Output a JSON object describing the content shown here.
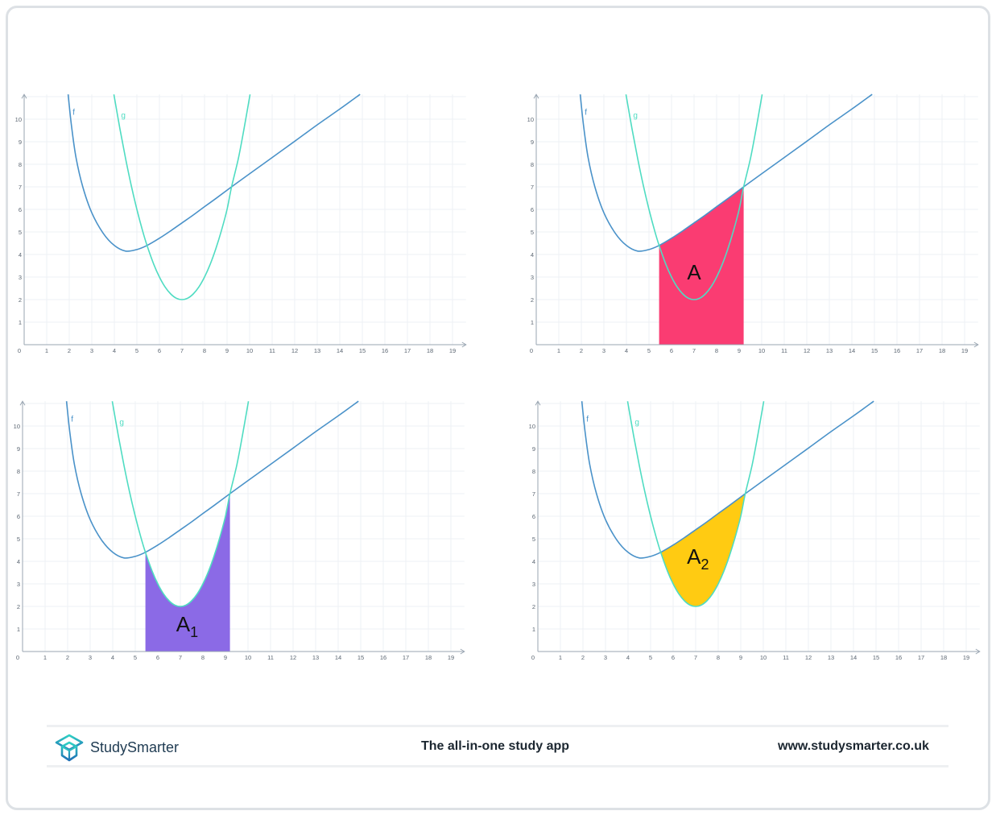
{
  "colors": {
    "f": "#4a92c9",
    "g": "#4fdcc2",
    "fill_A": "#fa3c72",
    "fill_A1": "#8b6ae6",
    "fill_A2": "#ffcb12",
    "axis": "#9aa6b2",
    "grid": "#eef1f4"
  },
  "chart_data": [
    {
      "type": "line",
      "x_ticks": [
        "0",
        "1",
        "2",
        "3",
        "4",
        "5",
        "6",
        "7",
        "8",
        "9",
        "10",
        "11",
        "12",
        "13",
        "14",
        "15",
        "16",
        "17",
        "18",
        "19"
      ],
      "y_ticks": [
        "1",
        "2",
        "3",
        "4",
        "5",
        "6",
        "7",
        "8",
        "9",
        "10"
      ],
      "xlim": [
        0,
        19.6
      ],
      "ylim": [
        0,
        11.1
      ],
      "grid": true,
      "series": [
        {
          "name": "f",
          "points": [
            [
              1.95,
              11.1
            ],
            [
              2.1,
              9.7
            ],
            [
              2.3,
              8.3
            ],
            [
              2.6,
              7
            ],
            [
              3,
              5.85
            ],
            [
              3.5,
              4.95
            ],
            [
              4,
              4.4
            ],
            [
              4.5,
              4.15
            ],
            [
              5,
              4.22
            ],
            [
              5.45,
              4.4
            ],
            [
              6,
              4.72
            ],
            [
              6.5,
              5.05
            ],
            [
              7,
              5.4
            ],
            [
              7.5,
              5.75
            ],
            [
              8,
              6.12
            ],
            [
              8.5,
              6.48
            ],
            [
              9.2,
              7
            ],
            [
              10,
              7.58
            ],
            [
              11,
              8.3
            ],
            [
              12,
              9.02
            ],
            [
              13,
              9.75
            ],
            [
              14,
              10.45
            ],
            [
              14.9,
              11.1
            ]
          ]
        },
        {
          "name": "g",
          "points": [
            [
              3.98,
              11.1
            ],
            [
              4.25,
              9.56
            ],
            [
              4.5,
              8.25
            ],
            [
              4.75,
              7.06
            ],
            [
              5,
              6
            ],
            [
              5.25,
              5.06
            ],
            [
              5.45,
              4.4
            ],
            [
              5.75,
              3.56
            ],
            [
              6,
              3
            ],
            [
              6.25,
              2.56
            ],
            [
              6.5,
              2.25
            ],
            [
              6.75,
              2.06
            ],
            [
              7,
              2
            ],
            [
              7.25,
              2.06
            ],
            [
              7.5,
              2.25
            ],
            [
              7.75,
              2.56
            ],
            [
              8,
              3
            ],
            [
              8.25,
              3.56
            ],
            [
              8.5,
              4.25
            ],
            [
              8.75,
              5.06
            ],
            [
              9,
              6
            ],
            [
              9.2,
              7
            ],
            [
              9.5,
              8.25
            ],
            [
              9.75,
              9.56
            ],
            [
              10.02,
              11.1
            ]
          ]
        }
      ],
      "shaded": null
    },
    {
      "type": "area",
      "x_ticks": [
        "0",
        "1",
        "2",
        "3",
        "4",
        "5",
        "6",
        "7",
        "8",
        "9",
        "10",
        "11",
        "12",
        "13",
        "14",
        "15",
        "16",
        "17",
        "18",
        "19"
      ],
      "y_ticks": [
        "1",
        "2",
        "3",
        "4",
        "5",
        "6",
        "7",
        "8",
        "9",
        "10"
      ],
      "xlim": [
        0,
        19.6
      ],
      "ylim": [
        0,
        11.1
      ],
      "grid": true,
      "series": [
        {
          "name": "f"
        },
        {
          "name": "g"
        }
      ],
      "shaded": {
        "label": "A",
        "sub": "",
        "region": "under f",
        "from": 5.45,
        "to": 9.2
      }
    },
    {
      "type": "area",
      "x_ticks": [
        "0",
        "1",
        "2",
        "3",
        "4",
        "5",
        "6",
        "7",
        "8",
        "9",
        "10",
        "11",
        "12",
        "13",
        "14",
        "15",
        "16",
        "17",
        "18",
        "19"
      ],
      "y_ticks": [
        "1",
        "2",
        "3",
        "4",
        "5",
        "6",
        "7",
        "8",
        "9",
        "10"
      ],
      "xlim": [
        0,
        19.6
      ],
      "ylim": [
        0,
        11.1
      ],
      "grid": true,
      "series": [
        {
          "name": "f"
        },
        {
          "name": "g"
        }
      ],
      "shaded": {
        "label": "A",
        "sub": "1",
        "region": "under g",
        "from": 5.45,
        "to": 9.2
      }
    },
    {
      "type": "area",
      "x_ticks": [
        "0",
        "1",
        "2",
        "3",
        "4",
        "5",
        "6",
        "7",
        "8",
        "9",
        "10",
        "11",
        "12",
        "13",
        "14",
        "15",
        "16",
        "17",
        "18",
        "19"
      ],
      "y_ticks": [
        "1",
        "2",
        "3",
        "4",
        "5",
        "6",
        "7",
        "8",
        "9",
        "10"
      ],
      "xlim": [
        0,
        19.6
      ],
      "ylim": [
        0,
        11.1
      ],
      "grid": true,
      "series": [
        {
          "name": "f"
        },
        {
          "name": "g"
        }
      ],
      "shaded": {
        "label": "A",
        "sub": "2",
        "region": "between f and g",
        "from": 5.45,
        "to": 9.2
      }
    }
  ],
  "footer": {
    "brand": "StudySmarter",
    "tagline": "The all-in-one study app",
    "url": "www.studysmarter.co.uk",
    "logo_icon": "studysmarter-cube-logo"
  }
}
